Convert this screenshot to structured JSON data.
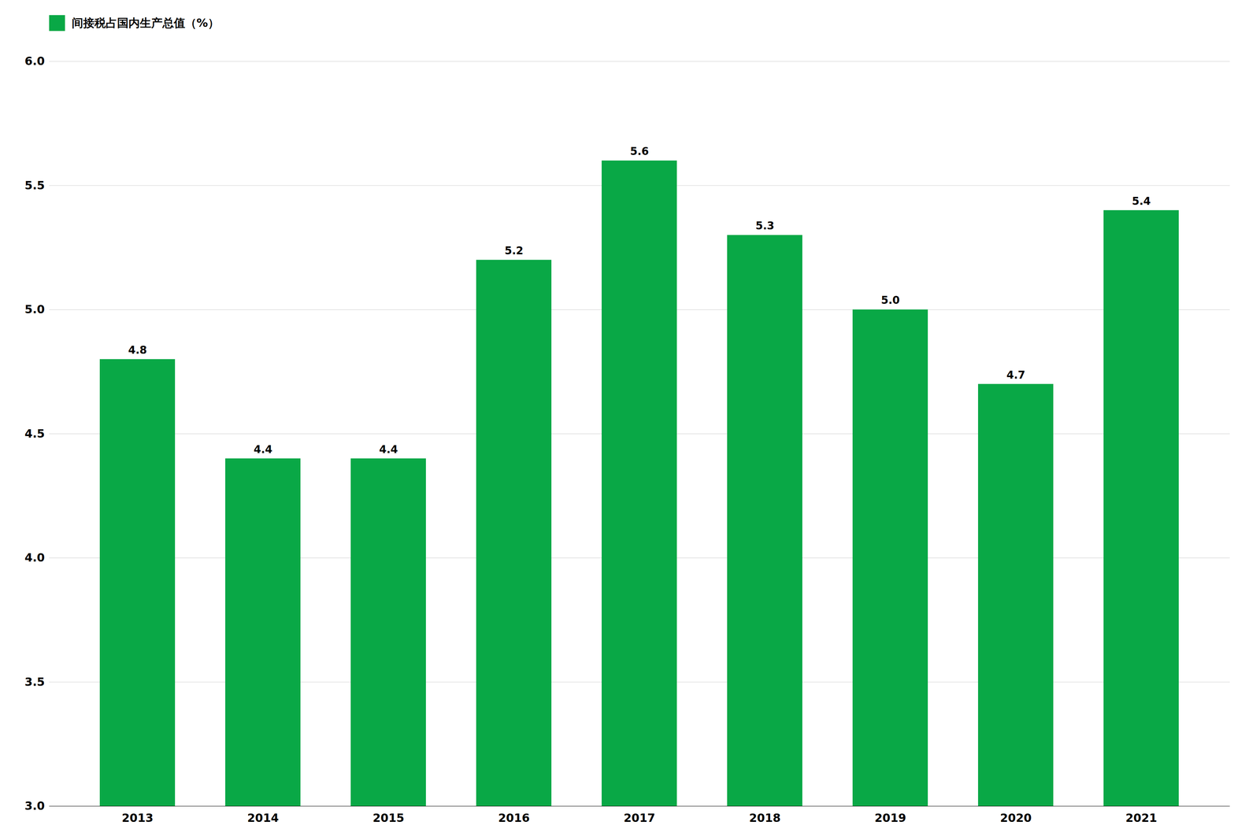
{
  "chart_data": {
    "type": "bar",
    "categories": [
      "2013",
      "2014",
      "2015",
      "2016",
      "2017",
      "2018",
      "2019",
      "2020",
      "2021"
    ],
    "series": [
      {
        "name": "间接税占国内生产总值（%）",
        "color": "#09a846",
        "values": [
          4.8,
          4.4,
          4.4,
          5.2,
          5.6,
          5.3,
          5.0,
          4.7,
          5.4
        ],
        "value_labels": [
          "4.8",
          "4.4",
          "4.4",
          "5.2",
          "5.6",
          "5.3",
          "5.0",
          "4.7",
          "5.4"
        ]
      }
    ],
    "ylim": [
      3.0,
      6.0
    ],
    "yticks": [
      {
        "value": 3.0,
        "label": "3.0"
      },
      {
        "value": 3.5,
        "label": "3.5"
      },
      {
        "value": 4.0,
        "label": "4.0"
      },
      {
        "value": 4.5,
        "label": "4.5"
      },
      {
        "value": 5.0,
        "label": "5.0"
      },
      {
        "value": 5.5,
        "label": "5.5"
      },
      {
        "value": 6.0,
        "label": "6.0"
      }
    ],
    "grid": true,
    "data_labels": true,
    "legend": "upper left"
  }
}
